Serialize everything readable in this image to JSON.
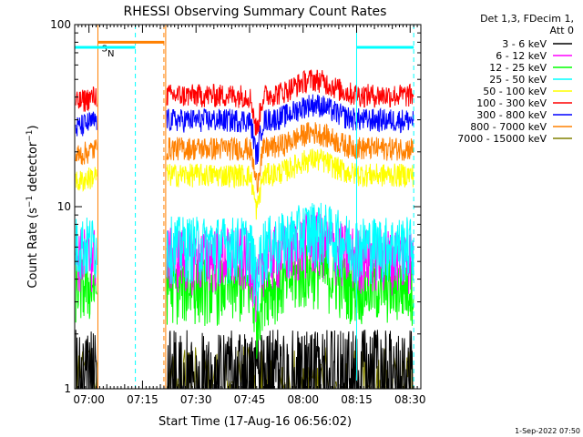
{
  "chart_data": {
    "type": "line",
    "title": "RHESSI Observing Summary Count Rates",
    "xlabel": "Start Time (17-Aug-16 06:56:02)",
    "ylabel": "Count Rate (s⁻¹ detector⁻¹)",
    "ylabel_parts": [
      "Count Rate (s",
      "−1",
      " detector",
      "−1",
      ")"
    ],
    "y_scale": "log",
    "ylim": [
      1,
      100
    ],
    "y_tick_labels": [
      "1",
      "10",
      "100"
    ],
    "x_range_minutes": [
      0,
      97
    ],
    "x_ticks": [
      {
        "label": "07:00",
        "minute": 4
      },
      {
        "label": "07:15",
        "minute": 19
      },
      {
        "label": "07:30",
        "minute": 34
      },
      {
        "label": "07:45",
        "minute": 49
      },
      {
        "label": "08:00",
        "minute": 64
      },
      {
        "label": "08:15",
        "minute": 79
      },
      {
        "label": "08:30",
        "minute": 94
      }
    ],
    "data_gap_minutes": [
      6.5,
      25
    ],
    "legend_header": [
      "Det 1,3, FDecim 1,",
      "Att 0"
    ],
    "legend_position": "right",
    "series": [
      {
        "name": "3 - 6 keV",
        "color": "#000000",
        "level": 1.6
      },
      {
        "name": "6 - 12 keV",
        "color": "#ff00ff",
        "level": 5.9
      },
      {
        "name": "12 - 25 keV",
        "color": "#00ff00",
        "level": 4.0
      },
      {
        "name": "25 - 50 keV",
        "color": "#00ffff",
        "level": 6.8
      },
      {
        "name": "50 - 100 keV",
        "color": "#ffff00",
        "level": 15.0
      },
      {
        "name": "100 - 300 keV",
        "color": "#ff0000",
        "level": 41.0
      },
      {
        "name": "300 - 800 keV",
        "color": "#0000ff",
        "level": 30.0
      },
      {
        "name": "800 - 7000 keV",
        "color": "#ff8000",
        "level": 21.0
      },
      {
        "name": "7000 - 15000 keV",
        "color": "#808000",
        "level": 1.3
      }
    ],
    "flags": [
      {
        "label": "S",
        "color": "#ff8000",
        "start_min": 6.5,
        "end_min": 25,
        "y": 80
      },
      {
        "label": "N",
        "color": "#00ffff",
        "start_min": 0,
        "end_min": 17,
        "y": 75
      },
      {
        "label": "",
        "color": "#00ffff",
        "start_min": 79,
        "end_min": 95,
        "y": 75
      }
    ],
    "vlines": [
      {
        "minute": 6.5,
        "color": "#ff8000",
        "style": "solid"
      },
      {
        "minute": 17,
        "color": "#00ffff",
        "style": "dashed"
      },
      {
        "minute": 25,
        "color": "#ff8000",
        "style": "dashed"
      },
      {
        "minute": 25.5,
        "color": "#ff8000",
        "style": "solid"
      },
      {
        "minute": 79,
        "color": "#00ffff",
        "style": "solid"
      },
      {
        "minute": 95,
        "color": "#00ffff",
        "style": "dashed"
      }
    ]
  },
  "footer": {
    "date": "1-Sep-2022 07:50"
  }
}
